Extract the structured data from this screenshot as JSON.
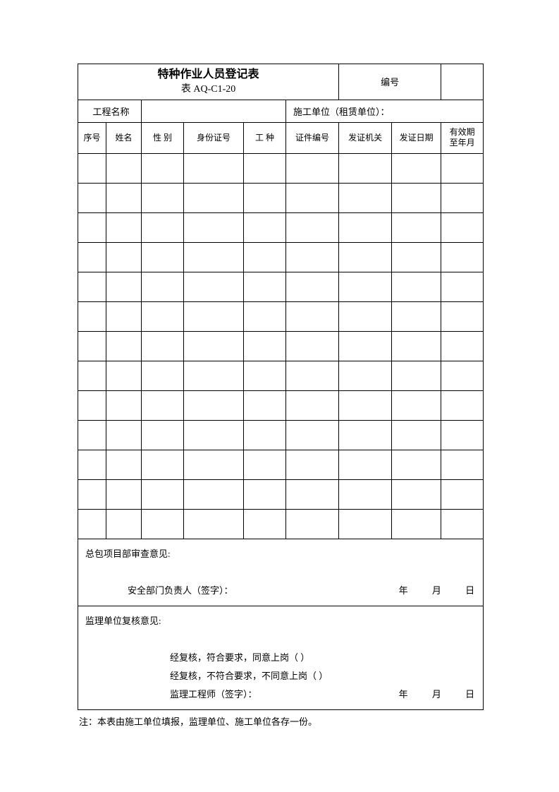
{
  "header": {
    "title": "特种作业人员登记表",
    "form_code": "表 AQ-C1-20",
    "number_label": "编号",
    "number_value": ""
  },
  "info": {
    "project_label": "工程名称",
    "project_value": "",
    "contractor_label": "施工单位（租赁单位）：",
    "contractor_value": ""
  },
  "columns": {
    "c0": "序号",
    "c1": "姓名",
    "c2": "性 别",
    "c3": "身份证号",
    "c4": "工  种",
    "c5": "证件编号",
    "c6": "发证机关",
    "c7": "发证日期",
    "c8_line1": "有效期",
    "c8_line2": "至年月"
  },
  "review1": {
    "title": "总包项目部审查意见:",
    "signer": "安全部门负责人（签字）：",
    "year": "年",
    "month": "月",
    "day": "日"
  },
  "review2": {
    "title": "监理单位复核意见:",
    "line1": "经复核，符合要求，同意上岗（    ）",
    "line2": "经复核，不符合要求，不同意上岗（    ）",
    "signer": "监理工程师（签字）：",
    "year": "年",
    "month": "月",
    "day": "日"
  },
  "note": "注：本表由施工单位填报，监理单位、施工单位各存一份。",
  "layout": {
    "col_widths": [
      "40",
      "50",
      "60",
      "85",
      "60",
      "75",
      "75",
      "70",
      "60"
    ],
    "data_row_count": 13
  }
}
